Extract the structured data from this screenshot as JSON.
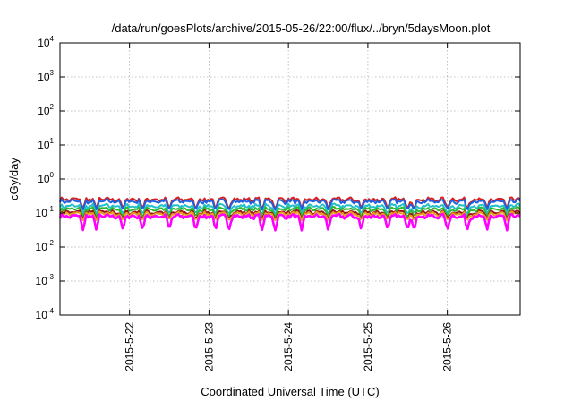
{
  "chart_data": {
    "type": "line",
    "title": "/data/run/goesPlots/archive/2015-05-26/22:00/flux/../bryn/5daysMoon.plot",
    "xlabel": "Coordinated Universal Time (UTC)",
    "ylabel": "cGy/day",
    "yscale": "log",
    "ylim": [
      0.0001,
      10000
    ],
    "xlim": [
      "2015-05-21T03:00",
      "2015-05-26T22:00"
    ],
    "x_ticks": [
      {
        "label": "2015-5-22",
        "value": "2015-05-22T00:00"
      },
      {
        "label": "2015-5-23",
        "value": "2015-05-23T00:00"
      },
      {
        "label": "2015-5-24",
        "value": "2015-05-24T00:00"
      },
      {
        "label": "2015-5-25",
        "value": "2015-05-25T00:00"
      },
      {
        "label": "2015-5-26",
        "value": "2015-05-26T00:00"
      }
    ],
    "y_ticks": [
      {
        "base": "10",
        "exp": "4",
        "value": 10000
      },
      {
        "base": "10",
        "exp": "3",
        "value": 1000
      },
      {
        "base": "10",
        "exp": "2",
        "value": 100
      },
      {
        "base": "10",
        "exp": "1",
        "value": 10
      },
      {
        "base": "10",
        "exp": "0",
        "value": 1
      },
      {
        "base": "10",
        "exp": "-1",
        "value": 0.1
      },
      {
        "base": "10",
        "exp": "-2",
        "value": 0.01
      },
      {
        "base": "10",
        "exp": "-3",
        "value": 0.001
      },
      {
        "base": "10",
        "exp": "-4",
        "value": 0.0001
      }
    ],
    "grid": true,
    "legend": "none",
    "series": [
      {
        "color": "#d62020",
        "level": 0.25,
        "dip_level": 0.13
      },
      {
        "color": "#1f5fe0",
        "level": 0.22,
        "dip_level": 0.12
      },
      {
        "color": "#22c0c8",
        "level": 0.16,
        "dip_level": 0.09
      },
      {
        "color": "#2fb82f",
        "level": 0.13,
        "dip_level": 0.075
      },
      {
        "color": "#9b1515",
        "level": 0.105,
        "dip_level": 0.065
      },
      {
        "color": "#e8a020",
        "level": 0.095,
        "dip_level": 0.06
      },
      {
        "color": "#ff00ff",
        "level": 0.08,
        "dip_level": 0.03
      }
    ],
    "dip_times": [
      "2015-05-21T10:00",
      "2015-05-21T14:00",
      "2015-05-21T22:00",
      "2015-05-22T04:00",
      "2015-05-22T12:00",
      "2015-05-22T20:00",
      "2015-05-23T02:00",
      "2015-05-23T06:00",
      "2015-05-23T16:00",
      "2015-05-23T20:00",
      "2015-05-24T04:00",
      "2015-05-24T12:00",
      "2015-05-24T22:00",
      "2015-05-25T06:00",
      "2015-05-25T12:00",
      "2015-05-25T14:00",
      "2015-05-26T00:00",
      "2015-05-26T06:00",
      "2015-05-26T12:00",
      "2015-05-26T18:00"
    ]
  }
}
